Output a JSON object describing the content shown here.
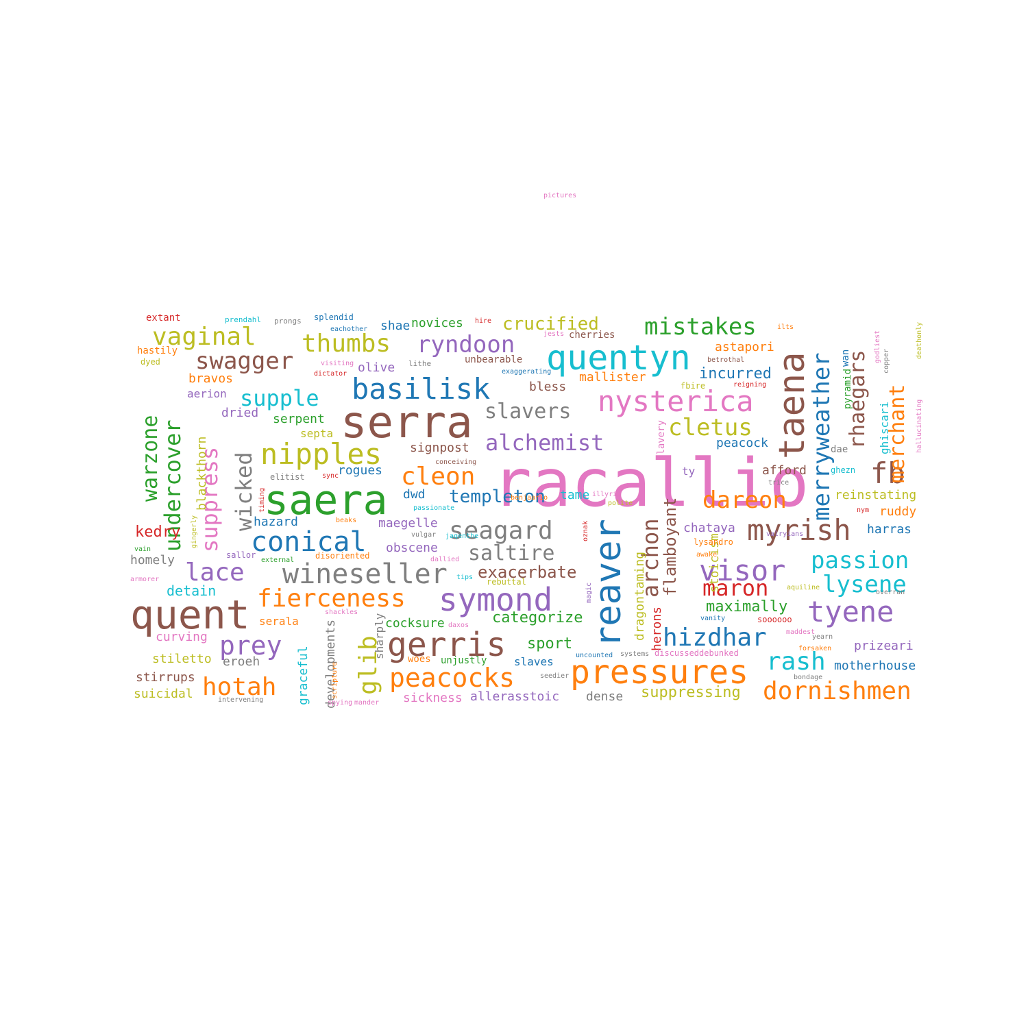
{
  "palette": {
    "blue": "#1f77b4",
    "orange": "#ff7f0e",
    "green": "#2ca02c",
    "red": "#d62728",
    "purple": "#9467bd",
    "brown": "#8c564b",
    "pink": "#e377c2",
    "gray": "#7f7f7f",
    "olive": "#bcbd22",
    "cyan": "#17becf"
  },
  "words": [
    "racallio",
    "serra",
    "saera",
    "quent",
    "taena",
    "reaver",
    "quentyn",
    "pressures",
    "gerris",
    "symond",
    "nysterica",
    "basilisk",
    "myrish",
    "visor",
    "nipples",
    "fb",
    "peacocks",
    "tyene",
    "dornishmen",
    "wineseller",
    "conical",
    "prey",
    "cleon",
    "glib",
    "hotah",
    "rash",
    "fierceness",
    "lace",
    "vaginal",
    "thumbs",
    "ryndoon",
    "mistakes",
    "merryweather",
    "rhaegars",
    "archon",
    "hizdhar",
    "maron",
    "passion",
    "lysene",
    "dareon",
    "supple",
    "suppress",
    "warzone",
    "undercover",
    "wicked",
    "swagger",
    "alchemist",
    "cletus",
    "slavers",
    "seagard",
    "saltire",
    "merchant",
    "crucified",
    "templeton",
    "exacerbate",
    "flamboyant",
    "categorize",
    "maximally",
    "sport",
    "suppressing",
    "sickness",
    "allerasstoic",
    "motherhouse",
    "incurred",
    "mallister",
    "astapori",
    "reinstating",
    "ruddy",
    "harras",
    "chataya",
    "afford",
    "peacock",
    "stoicism",
    "dragontaming",
    "herons",
    "kedry",
    "detain",
    "bravos",
    "dried",
    "serpent",
    "septa",
    "aerion",
    "blackthorn",
    "rogues",
    "hazard",
    "maegelle",
    "obscene",
    "homely",
    "serala",
    "curving",
    "stiletto",
    "stirrups",
    "suicidal",
    "eroeh",
    "developments",
    "graceful",
    "sharply",
    "cocksure",
    "woes",
    "unjustly",
    "slaves",
    "dense",
    "prizeari",
    "ghiscari",
    "pyramid",
    "wan",
    "dae",
    "ghezn",
    "nym",
    "bless",
    "shae",
    "novices",
    "splendid",
    "olive",
    "unbearable",
    "cherries",
    "signpost",
    "dwd",
    "tame",
    "sallor",
    "disoriented",
    "extant",
    "hastily",
    "dyed",
    "prendahl",
    "prongs",
    "eachother",
    "hire",
    "jests",
    "lithe",
    "visiting",
    "dictator",
    "exaggerating",
    "betrothal",
    "reigning",
    "fbire",
    "copper",
    "godliest",
    "hallucinating",
    "deathonly",
    "conceiving",
    "elitist",
    "sync",
    "passionate",
    "benjaario",
    "illyrio",
    "polite",
    "trice",
    "timing",
    "beaks",
    "vulgar",
    "jaqenthe",
    "oznak",
    "lysandro",
    "awake",
    "valryians",
    "external",
    "dallied",
    "tips",
    "rebuttal",
    "gingerly",
    "vain",
    "armorer",
    "magic",
    "scripture",
    "spying",
    "mander",
    "shackles",
    "daxos",
    "intervening",
    "uncounted",
    "systems",
    "discusseddebunked",
    "soooooo",
    "maddest",
    "yearn",
    "forsaken",
    "bondage",
    "overran",
    "vanity",
    "aquiline",
    "seedier",
    "pictures",
    "ilts",
    "slavery",
    "ty"
  ]
}
